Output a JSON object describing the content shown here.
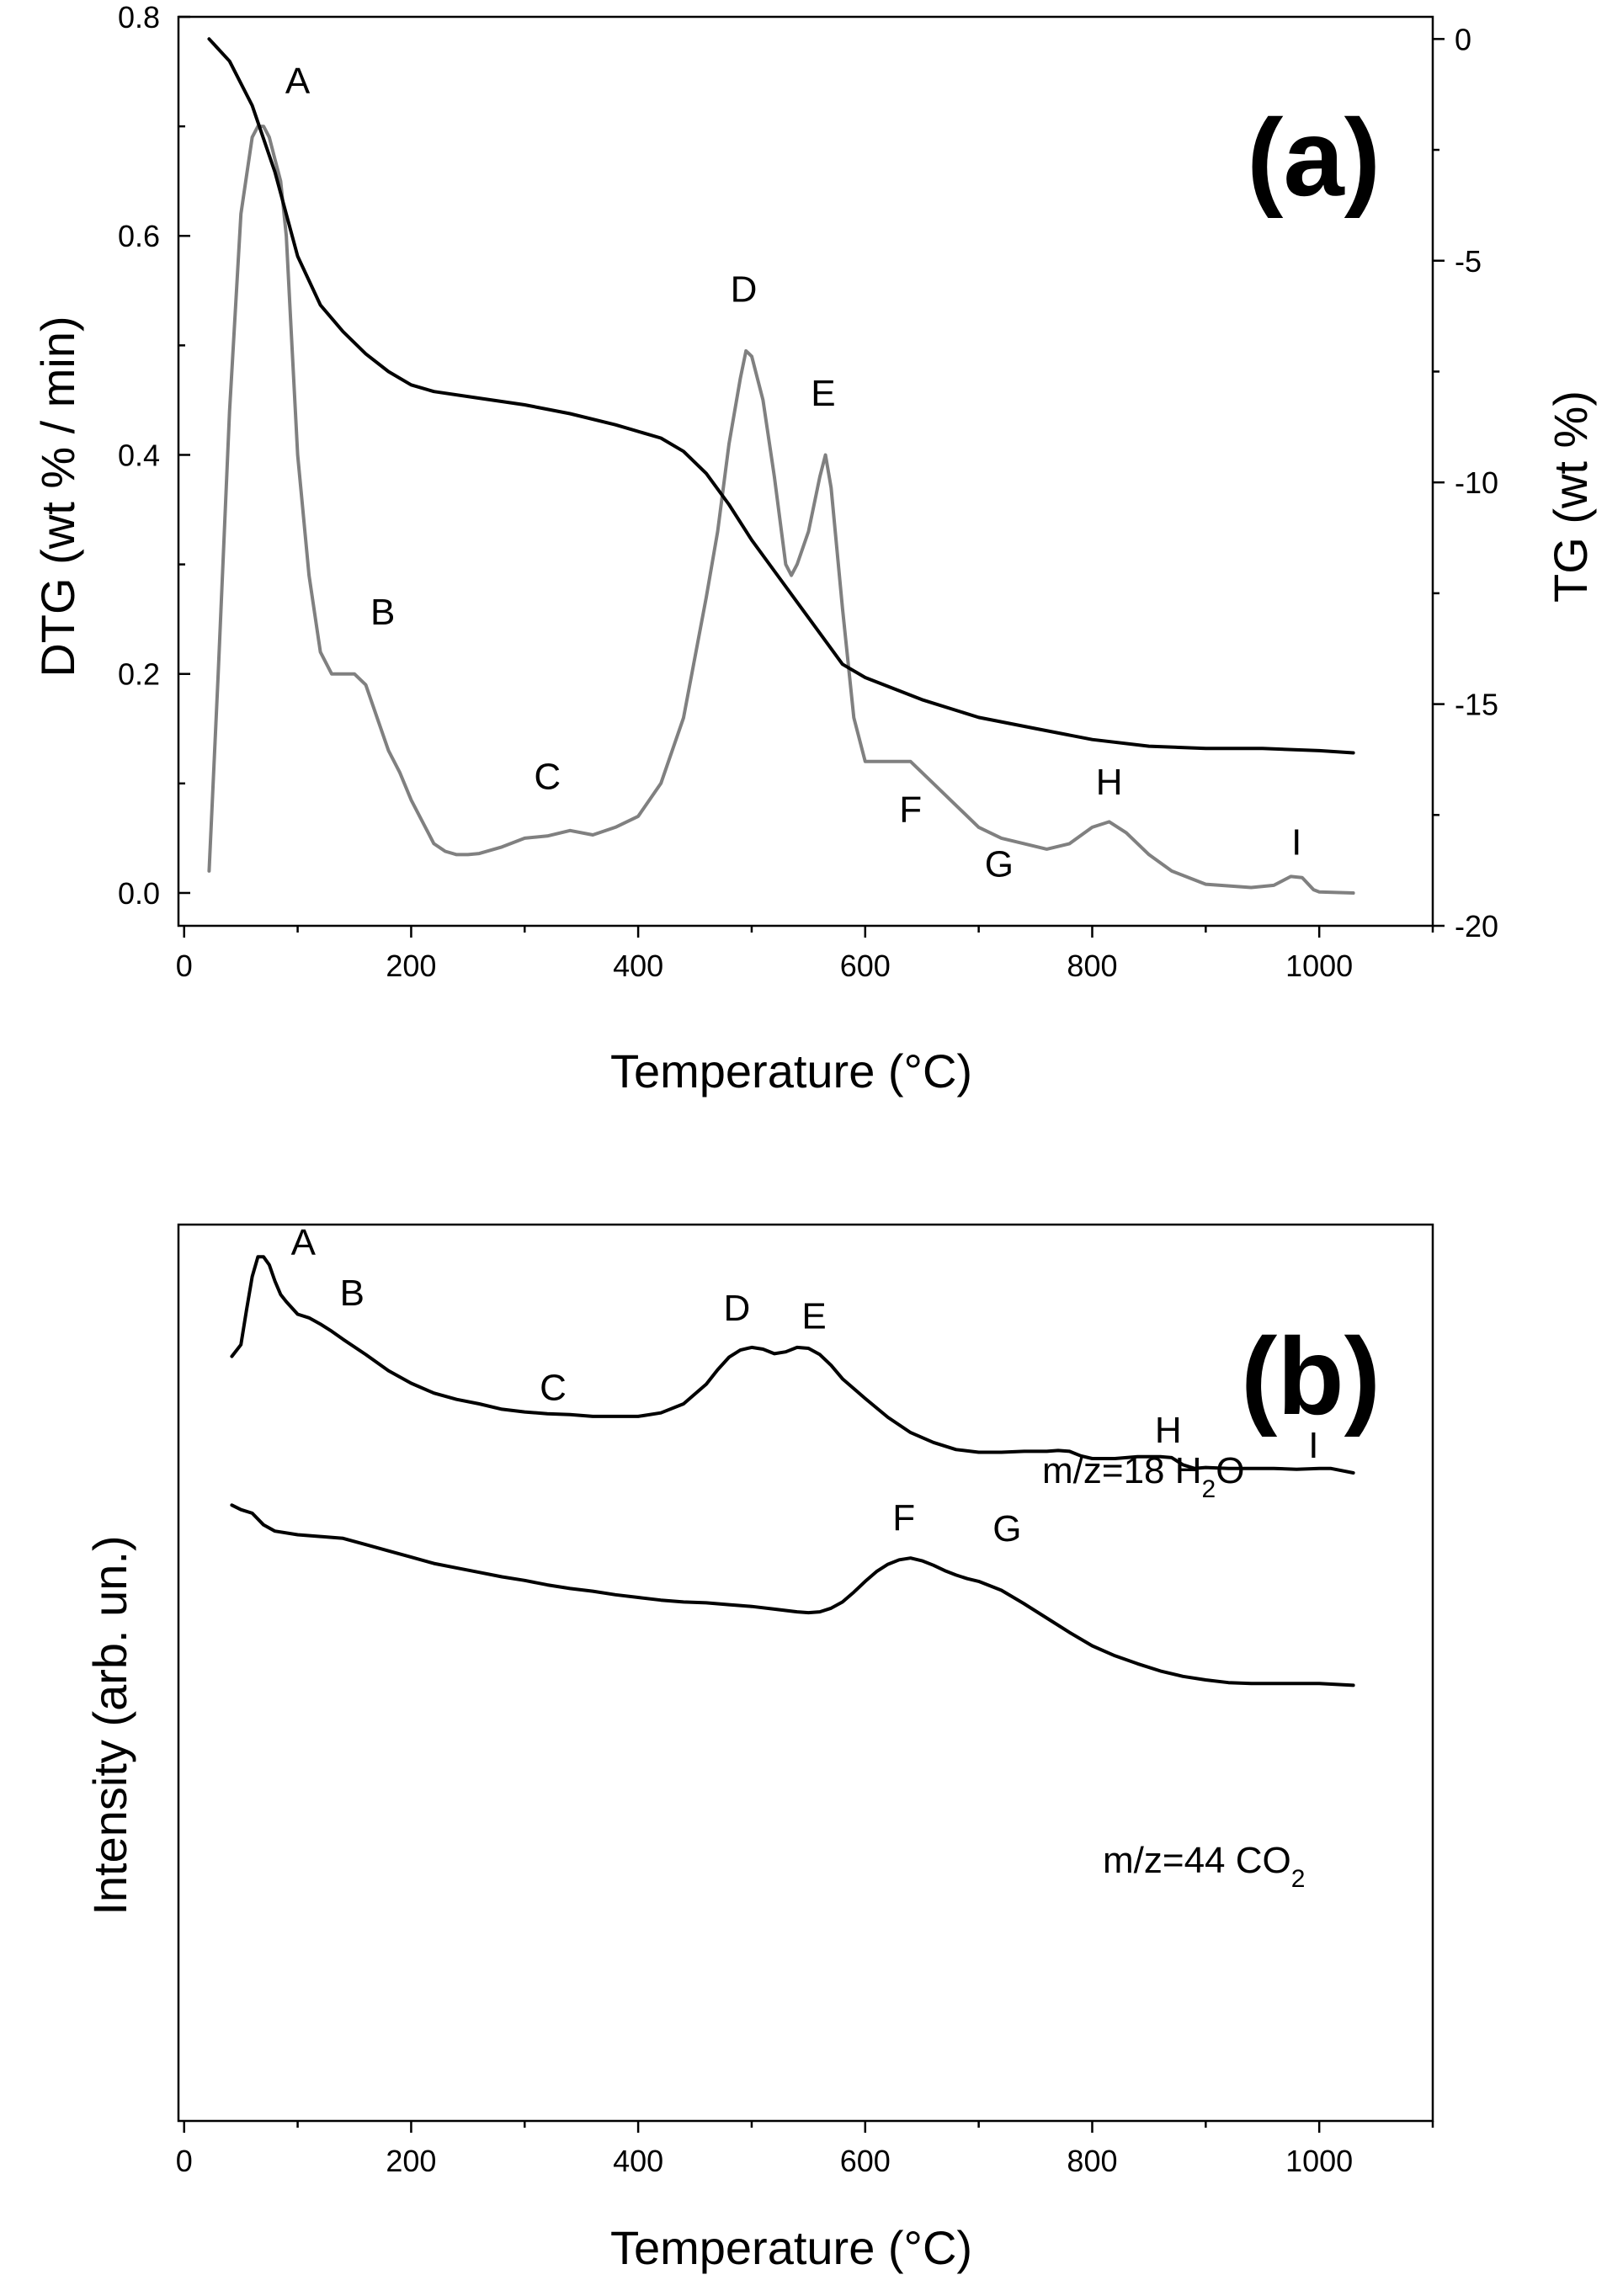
{
  "chart_data": [
    {
      "panel_label": "(a)",
      "type": "line",
      "xlabel": "Temperature (°C)",
      "ylabel": "DTG (wt % / min)",
      "y2label": "TG (wt %)",
      "xlim": [
        -5,
        1100
      ],
      "ylim": [
        -0.03,
        0.8
      ],
      "y2lim": [
        -20,
        0.5
      ],
      "xticks": [
        0,
        200,
        400,
        600,
        800,
        1000
      ],
      "yticks": [
        0.0,
        0.2,
        0.4,
        0.6,
        0.8
      ],
      "y2ticks": [
        0,
        -5,
        -10,
        -15,
        -20
      ],
      "ytick_labels": [
        "0.0",
        "0.2",
        "0.4",
        "0.6",
        "0.8"
      ],
      "grid": false,
      "colors": {
        "dtg": "#808080",
        "tg": "#000000"
      },
      "series": [
        {
          "key": "dtg",
          "axis": "left",
          "x": [
            22,
            30,
            40,
            50,
            60,
            65,
            70,
            75,
            80,
            85,
            90,
            95,
            100,
            110,
            120,
            130,
            140,
            150,
            160,
            170,
            180,
            190,
            200,
            210,
            220,
            230,
            240,
            250,
            260,
            280,
            300,
            320,
            340,
            360,
            380,
            400,
            420,
            440,
            460,
            470,
            480,
            490,
            495,
            500,
            510,
            520,
            530,
            535,
            540,
            550,
            560,
            565,
            570,
            580,
            590,
            600,
            610,
            620,
            640,
            660,
            680,
            700,
            720,
            740,
            760,
            780,
            800,
            815,
            830,
            850,
            870,
            900,
            940,
            960,
            975,
            985,
            995,
            1000,
            1030
          ],
          "y": [
            0.02,
            0.2,
            0.44,
            0.62,
            0.69,
            0.7,
            0.7,
            0.69,
            0.67,
            0.65,
            0.6,
            0.5,
            0.4,
            0.29,
            0.22,
            0.2,
            0.2,
            0.2,
            0.19,
            0.16,
            0.13,
            0.11,
            0.085,
            0.065,
            0.045,
            0.038,
            0.035,
            0.035,
            0.036,
            0.042,
            0.05,
            0.052,
            0.057,
            0.053,
            0.06,
            0.07,
            0.1,
            0.16,
            0.27,
            0.33,
            0.41,
            0.47,
            0.495,
            0.49,
            0.45,
            0.38,
            0.3,
            0.29,
            0.3,
            0.33,
            0.38,
            0.4,
            0.37,
            0.26,
            0.16,
            0.12,
            0.12,
            0.12,
            0.12,
            0.1,
            0.08,
            0.06,
            0.05,
            0.045,
            0.04,
            0.045,
            0.06,
            0.065,
            0.055,
            0.035,
            0.02,
            0.008,
            0.005,
            0.007,
            0.015,
            0.014,
            0.003,
            0.001,
            0.0
          ]
        },
        {
          "key": "tg",
          "axis": "right",
          "x": [
            22,
            40,
            60,
            80,
            100,
            120,
            140,
            160,
            180,
            200,
            220,
            260,
            300,
            340,
            380,
            420,
            440,
            460,
            480,
            500,
            520,
            540,
            560,
            580,
            600,
            650,
            700,
            750,
            800,
            850,
            900,
            950,
            1000,
            1030
          ],
          "y": [
            0.0,
            -0.5,
            -1.5,
            -3.0,
            -4.9,
            -6.0,
            -6.6,
            -7.1,
            -7.5,
            -7.8,
            -7.95,
            -8.1,
            -8.25,
            -8.45,
            -8.7,
            -9.0,
            -9.3,
            -9.8,
            -10.5,
            -11.3,
            -12.0,
            -12.7,
            -13.4,
            -14.1,
            -14.4,
            -14.9,
            -15.3,
            -15.55,
            -15.8,
            -15.95,
            -16.0,
            -16.0,
            -16.05,
            -16.1
          ]
        }
      ],
      "annotations": [
        {
          "text": "A",
          "x": 100,
          "y": 0.73
        },
        {
          "text": "B",
          "x": 175,
          "y": 0.245
        },
        {
          "text": "C",
          "x": 320,
          "y": 0.095
        },
        {
          "text": "D",
          "x": 493,
          "y": 0.54
        },
        {
          "text": "E",
          "x": 563,
          "y": 0.445
        },
        {
          "text": "F",
          "x": 640,
          "y": 0.065
        },
        {
          "text": "G",
          "x": 718,
          "y": 0.015
        },
        {
          "text": "H",
          "x": 815,
          "y": 0.09
        },
        {
          "text": "I",
          "x": 980,
          "y": 0.035
        }
      ]
    },
    {
      "panel_label": "(b)",
      "type": "line",
      "xlabel": "Temperature (°C)",
      "ylabel": "Intensity (arb. un.)",
      "xlim": [
        -5,
        1100
      ],
      "ylim": [
        0,
        100
      ],
      "xticks": [
        0,
        200,
        400,
        600,
        800,
        1000
      ],
      "grid": false,
      "series": [
        {
          "key": "h2o",
          "label": "m/z=18 H",
          "label_sub": "2",
          "label_tail": "O",
          "x": [
            42,
            50,
            55,
            60,
            65,
            70,
            75,
            80,
            85,
            90,
            100,
            110,
            120,
            130,
            140,
            160,
            180,
            200,
            220,
            240,
            260,
            280,
            300,
            320,
            340,
            360,
            380,
            400,
            420,
            440,
            460,
            470,
            480,
            490,
            500,
            510,
            520,
            530,
            540,
            550,
            560,
            570,
            580,
            600,
            620,
            640,
            660,
            680,
            700,
            720,
            740,
            760,
            770,
            780,
            790,
            800,
            820,
            840,
            860,
            870,
            880,
            890,
            900,
            920,
            940,
            960,
            980,
            1000,
            1010,
            1030
          ],
          "y": [
            85.3,
            86.6,
            90.5,
            94.2,
            96.4,
            96.4,
            95.5,
            93.7,
            92.2,
            91.4,
            90.0,
            89.6,
            88.9,
            88.1,
            87.2,
            85.5,
            83.7,
            82.3,
            81.2,
            80.5,
            80.0,
            79.4,
            79.1,
            78.9,
            78.8,
            78.6,
            78.6,
            78.6,
            79.0,
            80.0,
            82.2,
            83.8,
            85.2,
            86.0,
            86.3,
            86.1,
            85.6,
            85.8,
            86.3,
            86.2,
            85.5,
            84.3,
            82.8,
            80.6,
            78.5,
            76.8,
            75.7,
            74.9,
            74.6,
            74.6,
            74.7,
            74.7,
            74.8,
            74.7,
            74.2,
            73.9,
            73.9,
            74.1,
            74.1,
            74.0,
            73.2,
            72.8,
            72.9,
            72.8,
            72.8,
            72.8,
            72.7,
            72.8,
            72.8,
            72.3
          ]
        },
        {
          "key": "co2",
          "label": "m/z=44 CO",
          "label_sub": "2",
          "label_tail": "",
          "x": [
            42,
            50,
            60,
            70,
            80,
            100,
            120,
            140,
            160,
            180,
            200,
            220,
            240,
            260,
            280,
            300,
            320,
            340,
            360,
            380,
            400,
            420,
            440,
            460,
            480,
            500,
            520,
            540,
            550,
            560,
            570,
            580,
            590,
            600,
            610,
            620,
            630,
            640,
            650,
            660,
            670,
            680,
            690,
            700,
            720,
            740,
            760,
            780,
            800,
            820,
            840,
            860,
            880,
            900,
            920,
            940,
            960,
            980,
            1000,
            1030
          ],
          "y": [
            68.7,
            68.2,
            67.8,
            66.5,
            65.8,
            65.4,
            65.2,
            65.0,
            64.3,
            63.6,
            62.9,
            62.2,
            61.7,
            61.2,
            60.7,
            60.3,
            59.8,
            59.4,
            59.1,
            58.7,
            58.4,
            58.1,
            57.9,
            57.8,
            57.6,
            57.4,
            57.1,
            56.8,
            56.7,
            56.8,
            57.2,
            57.9,
            59.0,
            60.2,
            61.3,
            62.1,
            62.6,
            62.8,
            62.5,
            62.0,
            61.4,
            60.9,
            60.5,
            60.2,
            59.2,
            57.7,
            56.1,
            54.5,
            53.0,
            51.9,
            51.0,
            50.2,
            49.6,
            49.2,
            48.9,
            48.8,
            48.8,
            48.8,
            48.8,
            48.6
          ]
        }
      ],
      "annotations": [
        {
          "text": "A",
          "x": 105,
          "y": 96.6
        },
        {
          "text": "B",
          "x": 148,
          "y": 91.0
        },
        {
          "text": "C",
          "x": 325,
          "y": 80.4
        },
        {
          "text": "D",
          "x": 487,
          "y": 89.3
        },
        {
          "text": "E",
          "x": 555,
          "y": 88.4
        },
        {
          "text": "H",
          "x": 867,
          "y": 75.7
        },
        {
          "text": "I",
          "x": 995,
          "y": 74.0
        },
        {
          "text": "F",
          "x": 634,
          "y": 65.9
        },
        {
          "text": "G",
          "x": 725,
          "y": 64.7
        }
      ]
    }
  ]
}
